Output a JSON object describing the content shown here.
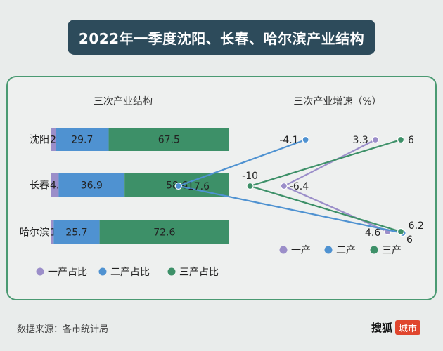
{
  "header": {
    "title": "2022年一季度沈阳、长春、哈尔滨产业结构"
  },
  "footer": {
    "source": "数据来源：各市统计局",
    "brand": "搜狐",
    "brand_tag": "城市"
  },
  "colors": {
    "primary": "#9b8ec9",
    "secondary": "#4f92d1",
    "tertiary": "#3d9068"
  },
  "chart_data": [
    {
      "type": "bar",
      "stacked": true,
      "orientation": "horizontal",
      "title": "三次产业结构",
      "categories": [
        "沈阳",
        "长春",
        "哈尔滨"
      ],
      "series": [
        {
          "name": "一产占比",
          "values": [
            2.8,
            4.5,
            1.7
          ]
        },
        {
          "name": "二产占比",
          "values": [
            29.7,
            36.9,
            25.7
          ]
        },
        {
          "name": "三产占比",
          "values": [
            67.5,
            58.6,
            72.6
          ]
        }
      ],
      "xlim": [
        0,
        100
      ],
      "legend": "bottom"
    },
    {
      "type": "line",
      "title": "三次产业增速（%）",
      "categories": [
        "沈阳",
        "长春",
        "哈尔滨"
      ],
      "series": [
        {
          "name": "一产",
          "values": [
            3.3,
            -6.4,
            4.6
          ]
        },
        {
          "name": "二产",
          "values": [
            -4.1,
            -17.6,
            6.2
          ]
        },
        {
          "name": "三产",
          "values": [
            6.0,
            -10.0,
            6.0
          ]
        }
      ],
      "legend": "bottom"
    }
  ]
}
